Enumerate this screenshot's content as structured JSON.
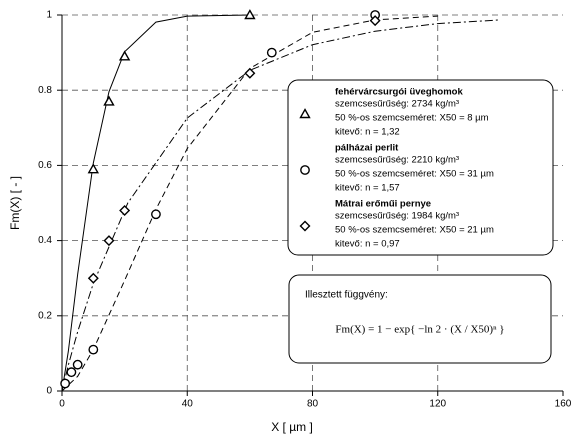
{
  "chart_data": {
    "type": "scatter",
    "xlabel": "X [ µm ]",
    "ylabel": "Fm(X) [ - ]",
    "xlim": [
      0,
      160
    ],
    "xticks": [
      0,
      40,
      80,
      120,
      160
    ],
    "ylim": [
      0,
      1
    ],
    "yticks": [
      0,
      0.2,
      0.4,
      0.6,
      0.8,
      1
    ],
    "grid": true,
    "series": [
      {
        "name": "fehérvárcsurgói üveghomok",
        "marker": "triangle",
        "color": "#000000",
        "dash": "",
        "details": [
          "szemcsesűrűség: 2734 kg/m³",
          "50 %-os szemcseméret: X50 = 8 µm",
          "kitevő: n = 1,32"
        ],
        "x": [
          10,
          15,
          20,
          60
        ],
        "y": [
          0.59,
          0.77,
          0.89,
          1.0
        ],
        "fit_x": [
          0,
          2,
          5,
          10,
          15,
          20,
          30,
          40,
          60
        ],
        "fit_y": [
          0,
          0.105,
          0.311,
          0.606,
          0.796,
          0.902,
          0.981,
          0.997,
          1.0
        ]
      },
      {
        "name": "pálházai perlit",
        "marker": "circle",
        "color": "#000000",
        "dash": "6 4",
        "details": [
          "szemcsesűrűség: 2210 kg/m³",
          "50 %-os szemcseméret: X50 = 31 µm",
          "kitevő: n = 1,57"
        ],
        "x": [
          1,
          3,
          5,
          10,
          30,
          67,
          100
        ],
        "y": [
          0.02,
          0.05,
          0.07,
          0.11,
          0.47,
          0.9,
          1.0
        ],
        "fit_x": [
          0,
          5,
          10,
          20,
          30,
          40,
          60,
          80,
          100,
          120
        ],
        "fit_y": [
          0,
          0.039,
          0.11,
          0.294,
          0.483,
          0.645,
          0.858,
          0.954,
          0.987,
          0.997
        ]
      },
      {
        "name": "Mátrai erőműi pernye",
        "marker": "diamond",
        "color": "#000000",
        "dash": "8 3 2 3",
        "details": [
          "szemcsesűrűség: 1984 kg/m³",
          "50 %-os szemcseméret: X50 = 21 µm",
          "kitevő: n = 0,97"
        ],
        "x": [
          10,
          15,
          20,
          60,
          100
        ],
        "y": [
          0.3,
          0.4,
          0.48,
          0.845,
          0.985
        ],
        "fit_x": [
          0,
          2,
          5,
          10,
          21,
          40,
          60,
          80,
          100,
          120,
          140
        ],
        "fit_y": [
          0,
          0.069,
          0.158,
          0.286,
          0.5,
          0.726,
          0.853,
          0.921,
          0.957,
          0.977,
          0.987
        ]
      }
    ],
    "annotation": {
      "title": "Illesztett függvény:",
      "formula": "Fm(X) = 1 − exp{ −ln 2 · (X / X50)ⁿ }"
    }
  }
}
